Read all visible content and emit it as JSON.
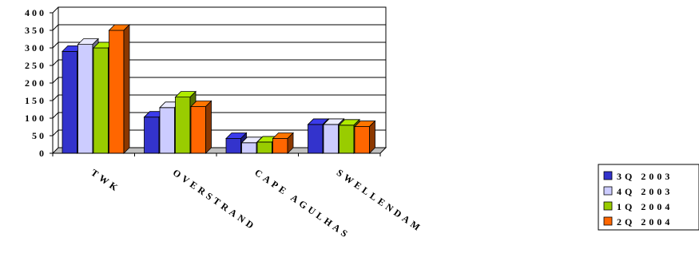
{
  "chart_data": {
    "type": "bar",
    "style": "3d-clustered-column",
    "categories": [
      "TWK",
      "OVERSTRAND",
      "CAPE AGULHAS",
      "SWELLENDAM"
    ],
    "series": [
      {
        "name": "3Q 2003",
        "color": "#3333cc",
        "values": [
          290,
          103,
          42,
          82
        ]
      },
      {
        "name": "4Q 2003",
        "color": "#ccccff",
        "values": [
          310,
          130,
          30,
          82
        ]
      },
      {
        "name": "1Q 2004",
        "color": "#99cc00",
        "values": [
          300,
          160,
          32,
          80
        ]
      },
      {
        "name": "2Q 2004",
        "color": "#ff6600",
        "values": [
          350,
          133,
          42,
          76
        ]
      }
    ],
    "yticks": [
      "0",
      "50",
      "100",
      "150",
      "200",
      "250",
      "300",
      "350",
      "400"
    ],
    "ylim": [
      0,
      400
    ],
    "grid": true,
    "legend": "right",
    "title": "",
    "xlabel": "",
    "ylabel": ""
  }
}
